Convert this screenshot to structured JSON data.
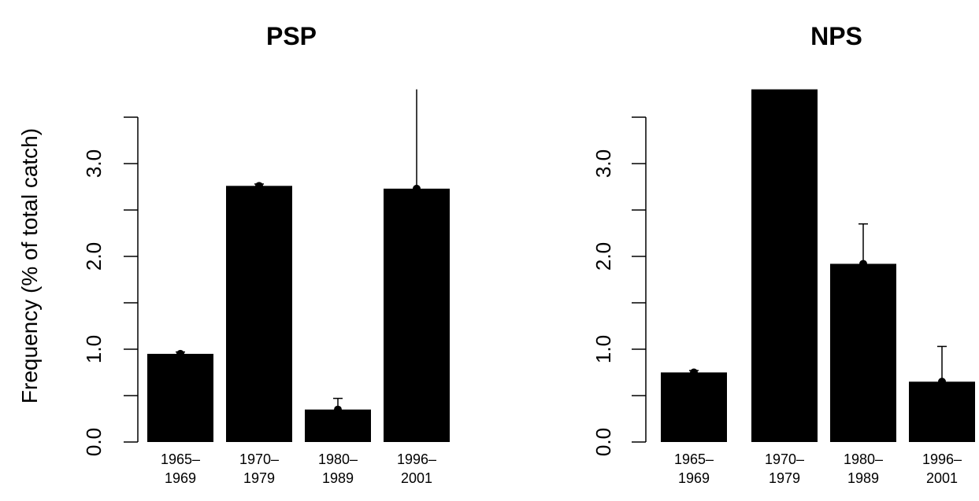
{
  "chart_data": [
    {
      "type": "bar",
      "title": "PSP",
      "ylabel": "Frequency (% of total catch)",
      "categories": [
        [
          "1965–",
          "1969"
        ],
        [
          "1970–",
          "1979"
        ],
        [
          "1980–",
          "1989"
        ],
        [
          "1996–",
          "2001"
        ]
      ],
      "values": [
        0.95,
        2.76,
        0.35,
        2.73
      ],
      "error_upper": [
        0.97,
        2.78,
        0.47,
        3.8
      ],
      "ylim": [
        0,
        3.8
      ],
      "yticks": [
        0.0,
        0.5,
        1.0,
        1.5,
        2.0,
        2.5,
        3.0,
        3.5
      ],
      "ytick_labels": [
        "0.0",
        "",
        "1.0",
        "",
        "2.0",
        "",
        "3.0",
        ""
      ],
      "grid": false,
      "bar_color": "#000000"
    },
    {
      "type": "bar",
      "title": "NPS",
      "ylabel": "",
      "categories": [
        [
          "1965–",
          "1969"
        ],
        [
          "1970–",
          "1979"
        ],
        [
          "1980–",
          "1989"
        ],
        [
          "1996–",
          "2001"
        ]
      ],
      "values": [
        0.75,
        3.8,
        1.92,
        0.65
      ],
      "error_upper": [
        0.77,
        3.8,
        2.35,
        1.03
      ],
      "ylim": [
        0,
        3.8
      ],
      "yticks": [
        0.0,
        0.5,
        1.0,
        1.5,
        2.0,
        2.5,
        3.0,
        3.5
      ],
      "ytick_labels": [
        "0.0",
        "",
        "1.0",
        "",
        "2.0",
        "",
        "3.0",
        ""
      ],
      "grid": false,
      "bar_color": "#000000"
    }
  ]
}
